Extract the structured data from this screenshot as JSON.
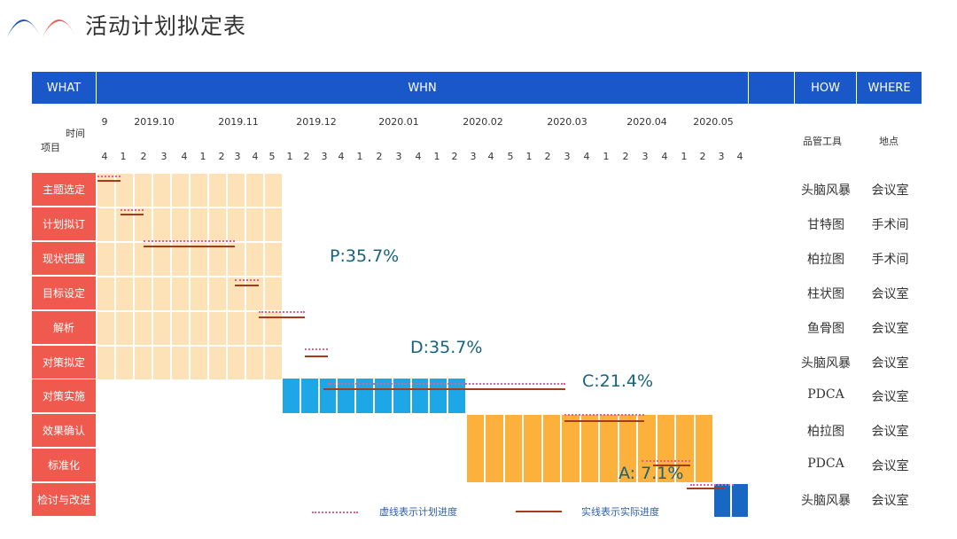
{
  "title": "活动计划拟定表",
  "header": {
    "what": "WHAT",
    "when": "WHN",
    "how": "HOW",
    "where": "WHERE"
  },
  "corner": {
    "time": "时间",
    "item": "项目"
  },
  "col_headers": {
    "tool": "品管工具",
    "place": "地点"
  },
  "months": [
    "9",
    "2019.10",
    "2019.11",
    "2019.12",
    "2020.01",
    "2020.02",
    "2020.03",
    "2020.04",
    "2020.05"
  ],
  "weeks": [
    "4",
    "1",
    "2",
    "3",
    "4",
    "1",
    "2",
    "3",
    "4",
    "5",
    "1",
    "2",
    "3",
    "4",
    "1",
    "2",
    "3",
    "4",
    "1",
    "2",
    "3",
    "4",
    "5",
    "1",
    "2",
    "3",
    "4",
    "1",
    "2",
    "3",
    "4",
    "1",
    "2",
    "3",
    "4"
  ],
  "rows": [
    {
      "label": "主题选定",
      "tool": "头脑风暴",
      "place": "会议室"
    },
    {
      "label": "计划拟订",
      "tool": "甘特图",
      "place": "手术间"
    },
    {
      "label": "现状把握",
      "tool": "柏拉图",
      "place": "手术间"
    },
    {
      "label": "目标设定",
      "tool": "柱状图",
      "place": "会议室"
    },
    {
      "label": "解析",
      "tool": "鱼骨图",
      "place": "会议室"
    },
    {
      "label": "对策拟定",
      "tool": "头脑风暴",
      "place": "会议室"
    },
    {
      "label": "对策实施",
      "tool": "PDCA",
      "place": "会议室"
    },
    {
      "label": "效果确认",
      "tool": "柏拉图",
      "place": "会议室"
    },
    {
      "label": "标准化",
      "tool": "PDCA",
      "place": "会议室"
    },
    {
      "label": "检讨与改进",
      "tool": "头脑风暴",
      "place": "会议室"
    }
  ],
  "phases": [
    {
      "label": "P:35.7%",
      "value": 35.7
    },
    {
      "label": "D:35.7%",
      "value": 35.7
    },
    {
      "label": "C:21.4%",
      "value": 21.4
    },
    {
      "label": "A: 7.1%",
      "value": 7.1
    }
  ],
  "legend": {
    "plan": "虚线表示计划进度",
    "actual": "实线表示实际进度"
  },
  "colors": {
    "header": "#1a57c8",
    "row_label": "#f05a4e",
    "plan_phase": "#fde2b8",
    "do_phase": "#1da7e6",
    "check_phase": "#fbb13b",
    "act_phase": "#1868c3",
    "plan_line": "#e0608f",
    "actual_line": "#a63a1d"
  }
}
